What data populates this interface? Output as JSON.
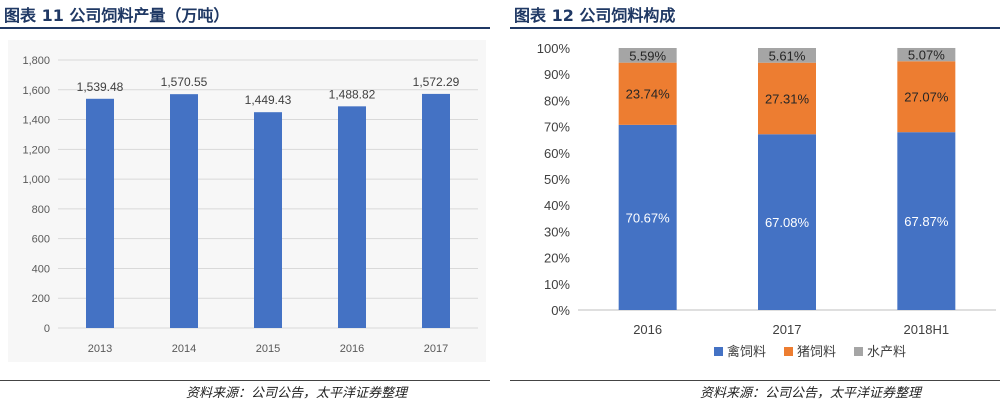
{
  "left_figure": {
    "title": "图表 11 公司饲料产量（万吨）",
    "source": "资料来源：公司公告，太平洋证券整理"
  },
  "right_figure": {
    "title": "图表 12 公司饲料构成",
    "source": "资料来源：公司公告，太平洋证券整理"
  },
  "colors": {
    "bar_blue": "#4472c4",
    "orange": "#ed7d31",
    "gray": "#a5a5a5",
    "title_navy": "#1f3864"
  },
  "chart_data": [
    {
      "type": "bar",
      "categories": [
        "2013",
        "2014",
        "2015",
        "2016",
        "2017"
      ],
      "values": [
        1539.48,
        1570.55,
        1449.43,
        1488.82,
        1572.29
      ],
      "data_labels": [
        "1,539.48",
        "1,570.55",
        "1,449.43",
        "1,488.82",
        "1,572.29"
      ],
      "ylim": [
        0,
        1800
      ],
      "yticks": [
        "0",
        "200",
        "400",
        "600",
        "800",
        "1,000",
        "1,200",
        "1,400",
        "1,600",
        "1,800"
      ],
      "grid": true
    },
    {
      "type": "bar",
      "stacked": true,
      "categories": [
        "2016",
        "2017",
        "2018H1"
      ],
      "series": [
        {
          "name": "禽饲料",
          "values": [
            70.67,
            67.08,
            67.87
          ],
          "labels": [
            "70.67%",
            "67.08%",
            "67.87%"
          ]
        },
        {
          "name": "猪饲料",
          "values": [
            23.74,
            27.31,
            27.07
          ],
          "labels": [
            "23.74%",
            "27.31%",
            "27.07%"
          ]
        },
        {
          "name": "水产料",
          "values": [
            5.59,
            5.61,
            5.07
          ],
          "labels": [
            "5.59%",
            "5.61%",
            "5.07%"
          ]
        }
      ],
      "ylim": [
        0,
        100
      ],
      "yticks": [
        "0%",
        "10%",
        "20%",
        "30%",
        "40%",
        "50%",
        "60%",
        "70%",
        "80%",
        "90%",
        "100%"
      ],
      "legend_placement": "bottom",
      "grid": false
    }
  ]
}
